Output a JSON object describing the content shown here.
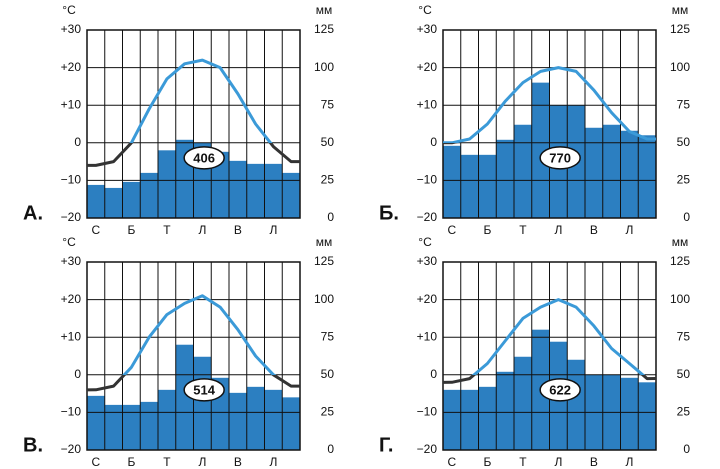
{
  "chart_data": [
    {
      "type": "climatogram",
      "label": "А.",
      "annotation": "406",
      "ylabel": "°С",
      "y2label": "мм",
      "categories": [
        "С",
        null,
        "Б",
        null,
        "Т",
        null,
        "Л",
        null,
        "В",
        null,
        "Л",
        null
      ],
      "ylim": [
        -20,
        30
      ],
      "yticks": [
        {
          "value": 30,
          "label": "+30"
        },
        {
          "value": 20,
          "label": "+20"
        },
        {
          "value": 10,
          "label": "+10"
        },
        0,
        {
          "value": -10,
          "label": "−10"
        },
        {
          "value": -20,
          "label": "−20"
        }
      ],
      "y2lim": [
        0,
        125
      ],
      "y2ticks": [
        125,
        100,
        75,
        50,
        25,
        0
      ],
      "series": [
        {
          "type": "line",
          "color": "#3b9ad8",
          "values": [
            -6,
            -5,
            0,
            9,
            17,
            21,
            22,
            20,
            13,
            5,
            -1,
            -5
          ]
        },
        {
          "type": "bar",
          "axis": "y2",
          "color": "#2c7fc1",
          "values": [
            22,
            20,
            24,
            30,
            45,
            52,
            50,
            44,
            38,
            36,
            36,
            30
          ]
        }
      ]
    },
    {
      "type": "climatogram",
      "label": "Б.",
      "annotation": "770",
      "ylabel": "°С",
      "y2label": "мм",
      "categories": [
        "С",
        null,
        "Б",
        null,
        "Т",
        null,
        "Л",
        null,
        "В",
        null,
        "Л",
        null
      ],
      "ylim": [
        -20,
        30
      ],
      "yticks": [
        {
          "value": 30,
          "label": "+30"
        },
        {
          "value": 20,
          "label": "+20"
        },
        {
          "value": 10,
          "label": "+10"
        },
        0,
        {
          "value": -10,
          "label": "−10"
        },
        {
          "value": -20,
          "label": "−20"
        }
      ],
      "y2lim": [
        0,
        125
      ],
      "y2ticks": [
        125,
        100,
        75,
        50,
        25,
        0
      ],
      "series": [
        {
          "type": "line",
          "color": "#3b9ad8",
          "values": [
            0,
            1,
            5,
            11,
            16,
            19,
            20,
            19,
            14,
            8,
            3,
            1
          ]
        },
        {
          "type": "bar",
          "axis": "y2",
          "color": "#2c7fc1",
          "values": [
            48,
            42,
            42,
            52,
            62,
            90,
            75,
            75,
            60,
            62,
            58,
            55
          ]
        }
      ]
    },
    {
      "type": "climatogram",
      "label": "В.",
      "annotation": "514",
      "ylabel": "°С",
      "y2label": "мм",
      "categories": [
        "С",
        null,
        "Б",
        null,
        "Т",
        null,
        "Л",
        null,
        "В",
        null,
        "Л",
        null
      ],
      "ylim": [
        -20,
        30
      ],
      "yticks": [
        {
          "value": 30,
          "label": "+30"
        },
        {
          "value": 20,
          "label": "+20"
        },
        {
          "value": 10,
          "label": "+10"
        },
        0,
        {
          "value": -10,
          "label": "−10"
        },
        {
          "value": -20,
          "label": "−20"
        }
      ],
      "y2lim": [
        0,
        125
      ],
      "y2ticks": [
        125,
        100,
        75,
        50,
        25,
        0
      ],
      "series": [
        {
          "type": "line",
          "color": "#3b9ad8",
          "values": [
            -4,
            -3,
            2,
            10,
            16,
            19,
            21,
            18,
            12,
            5,
            0,
            -3
          ]
        },
        {
          "type": "bar",
          "axis": "y2",
          "color": "#2c7fc1",
          "values": [
            36,
            30,
            30,
            32,
            40,
            70,
            62,
            48,
            38,
            42,
            40,
            35
          ]
        }
      ]
    },
    {
      "type": "climatogram",
      "label": "Г.",
      "annotation": "622",
      "ylabel": "°С",
      "y2label": "мм",
      "categories": [
        "С",
        null,
        "Б",
        null,
        "Т",
        null,
        "Л",
        null,
        "В",
        null,
        "Л",
        null
      ],
      "ylim": [
        -20,
        30
      ],
      "yticks": [
        {
          "value": 30,
          "label": "+30"
        },
        {
          "value": 20,
          "label": "+20"
        },
        {
          "value": 10,
          "label": "+10"
        },
        0,
        {
          "value": -10,
          "label": "−10"
        },
        {
          "value": -20,
          "label": "−20"
        }
      ],
      "y2lim": [
        0,
        125
      ],
      "y2ticks": [
        125,
        100,
        75,
        50,
        25,
        0
      ],
      "series": [
        {
          "type": "line",
          "color": "#3b9ad8",
          "values": [
            -2,
            -1,
            3,
            9,
            15,
            18,
            20,
            18,
            13,
            7,
            3,
            -1
          ]
        },
        {
          "type": "bar",
          "axis": "y2",
          "color": "#2c7fc1",
          "values": [
            40,
            40,
            42,
            52,
            62,
            80,
            72,
            60,
            50,
            50,
            48,
            45
          ]
        }
      ]
    }
  ]
}
